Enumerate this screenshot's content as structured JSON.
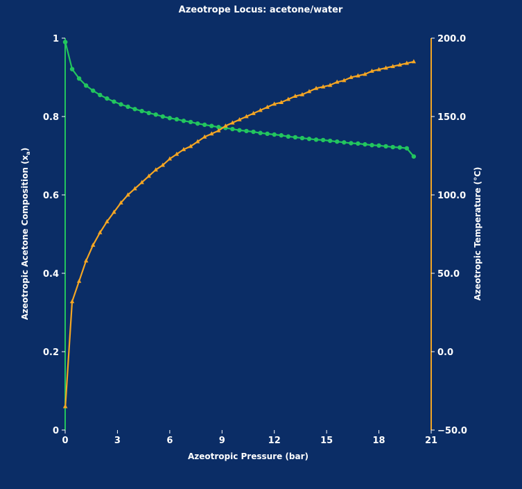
{
  "colors": {
    "background": "#0b2d66",
    "composition_series": "#22c55e",
    "temperature_series": "#f5a623",
    "text": "#ffffff"
  },
  "chart_data": {
    "type": "line",
    "title": "Azeotrope Locus: acetone/water",
    "xlabel": "Azeotropic Pressure (bar)",
    "ylabel_left": "Azeotropic Acetone Composition (x",
    "ylabel_left_sub": "a",
    "ylabel_left_close": ")",
    "ylabel_right": "Azeotropic Temperature (°C)",
    "xlim": [
      0,
      21
    ],
    "ylim_left": [
      0,
      1
    ],
    "ylim_right": [
      -50,
      200
    ],
    "x_ticks": [
      "0",
      "3",
      "6",
      "9",
      "12",
      "15",
      "18",
      "21"
    ],
    "y_left_ticks": [
      "0",
      "0.2",
      "0.4",
      "0.6",
      "0.8",
      "1"
    ],
    "y_right_ticks": [
      "−50.0",
      "0.0",
      "50.0",
      "100.0",
      "150.0",
      "200.0"
    ],
    "grid": false,
    "series": [
      {
        "key": "composition",
        "axis": "left",
        "marker": "circle",
        "x": [
          0,
          0.01,
          0.4,
          0.8,
          1.2,
          1.6,
          2.0,
          2.4,
          2.8,
          3.2,
          3.6,
          4.0,
          4.4,
          4.8,
          5.2,
          5.6,
          6.0,
          6.4,
          6.8,
          7.2,
          7.6,
          8.0,
          8.4,
          8.8,
          9.2,
          9.6,
          10.0,
          10.4,
          10.8,
          11.2,
          11.6,
          12.0,
          12.4,
          12.8,
          13.2,
          13.6,
          14.0,
          14.4,
          14.8,
          15.2,
          15.6,
          16.0,
          16.4,
          16.8,
          17.2,
          17.6,
          18.0,
          18.4,
          18.8,
          19.2,
          19.6,
          20.0
        ],
        "y": [
          0.99,
          0.99,
          0.921,
          0.897,
          0.879,
          0.866,
          0.855,
          0.846,
          0.838,
          0.831,
          0.825,
          0.819,
          0.814,
          0.809,
          0.805,
          0.8,
          0.796,
          0.793,
          0.789,
          0.786,
          0.782,
          0.779,
          0.776,
          0.773,
          0.771,
          0.768,
          0.765,
          0.763,
          0.761,
          0.758,
          0.756,
          0.754,
          0.752,
          0.749,
          0.747,
          0.745,
          0.743,
          0.741,
          0.74,
          0.738,
          0.736,
          0.734,
          0.732,
          0.731,
          0.729,
          0.727,
          0.726,
          0.724,
          0.722,
          0.721,
          0.719,
          0.698
        ]
      },
      {
        "key": "temperature",
        "axis": "right",
        "marker": "triangle",
        "x": [
          0,
          0.01,
          0.4,
          0.8,
          1.2,
          1.6,
          2.0,
          2.4,
          2.8,
          3.2,
          3.6,
          4.0,
          4.4,
          4.8,
          5.2,
          5.6,
          6.0,
          6.4,
          6.8,
          7.2,
          7.6,
          8.0,
          8.4,
          8.8,
          9.2,
          9.6,
          10.0,
          10.4,
          10.8,
          11.2,
          11.6,
          12.0,
          12.4,
          12.8,
          13.2,
          13.6,
          14.0,
          14.4,
          14.8,
          15.2,
          15.6,
          16.0,
          16.4,
          16.8,
          17.2,
          17.6,
          18.0,
          18.4,
          18.8,
          19.2,
          19.6,
          20.0
        ],
        "y": [
          -35,
          -35,
          32,
          45,
          58,
          68,
          76,
          83,
          89,
          95,
          100,
          104,
          108,
          112,
          116,
          119,
          123,
          126,
          129,
          131,
          134,
          137,
          139,
          141,
          144,
          146,
          148,
          150,
          152,
          154,
          156,
          158,
          159,
          161,
          163,
          164,
          166,
          168,
          169,
          170,
          172,
          173,
          175,
          176,
          177,
          179,
          180,
          181,
          182,
          183,
          184,
          185
        ]
      }
    ]
  }
}
